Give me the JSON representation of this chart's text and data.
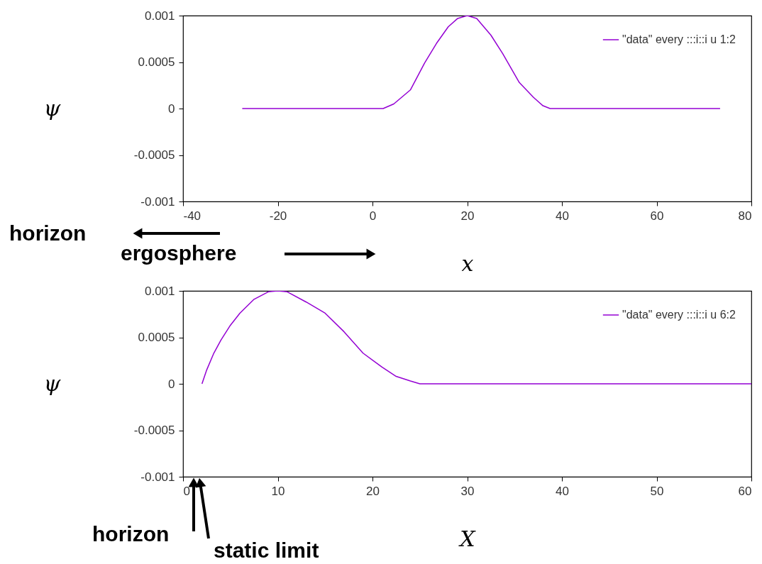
{
  "chart_data": [
    {
      "type": "line",
      "xlabel": "x",
      "ylabel": "ψ",
      "xlim": [
        -40,
        80
      ],
      "xticks": [
        -40,
        -20,
        0,
        20,
        40,
        60,
        80
      ],
      "ylim": [
        -0.001,
        0.001
      ],
      "yticks": [
        -0.001,
        -0.0005,
        0,
        0.0005,
        0.001
      ],
      "legend": "top right",
      "grid": false,
      "series": [
        {
          "name": "\"data\" every :::i::i u 1:2",
          "color": "#9400d3",
          "x": [
            -27.5,
            2.25,
            4.5,
            8,
            11,
            13.5,
            16,
            18,
            20,
            22,
            25,
            27.5,
            31,
            34,
            36,
            37.5,
            73.4
          ],
          "values": [
            0,
            0,
            5e-05,
            0.0002,
            0.00049,
            0.0007,
            0.00088,
            0.00097,
            0.001,
            0.00097,
            0.00079,
            0.00059,
            0.00028,
            0.00012,
            3e-05,
            0,
            0
          ]
        }
      ],
      "annotations": [
        "horizon",
        "ergosphere"
      ]
    },
    {
      "type": "line",
      "xlabel": "X",
      "ylabel": "ψ",
      "xlim": [
        0,
        60
      ],
      "xticks": [
        0,
        10,
        20,
        30,
        40,
        50,
        60
      ],
      "ylim": [
        -0.001,
        0.001
      ],
      "yticks": [
        -0.001,
        -0.0005,
        0,
        0.0005,
        0.001
      ],
      "legend": "top right",
      "grid": false,
      "series": [
        {
          "name": "\"data\" every :::i::i u 6:2",
          "color": "#9400d3",
          "x": [
            2,
            2.5,
            3.25,
            4,
            5,
            6,
            7.5,
            9,
            10,
            11,
            13,
            15,
            17,
            19,
            21,
            22.5,
            24,
            25,
            60
          ],
          "values": [
            0,
            0.00015,
            0.00033,
            0.00047,
            0.00063,
            0.00076,
            0.00091,
            0.00099,
            0.001,
            0.00099,
            0.00088,
            0.00076,
            0.00056,
            0.00033,
            0.00018,
            8e-05,
            3e-05,
            0,
            0
          ]
        }
      ],
      "annotations": [
        "horizon",
        "static limit"
      ]
    }
  ]
}
